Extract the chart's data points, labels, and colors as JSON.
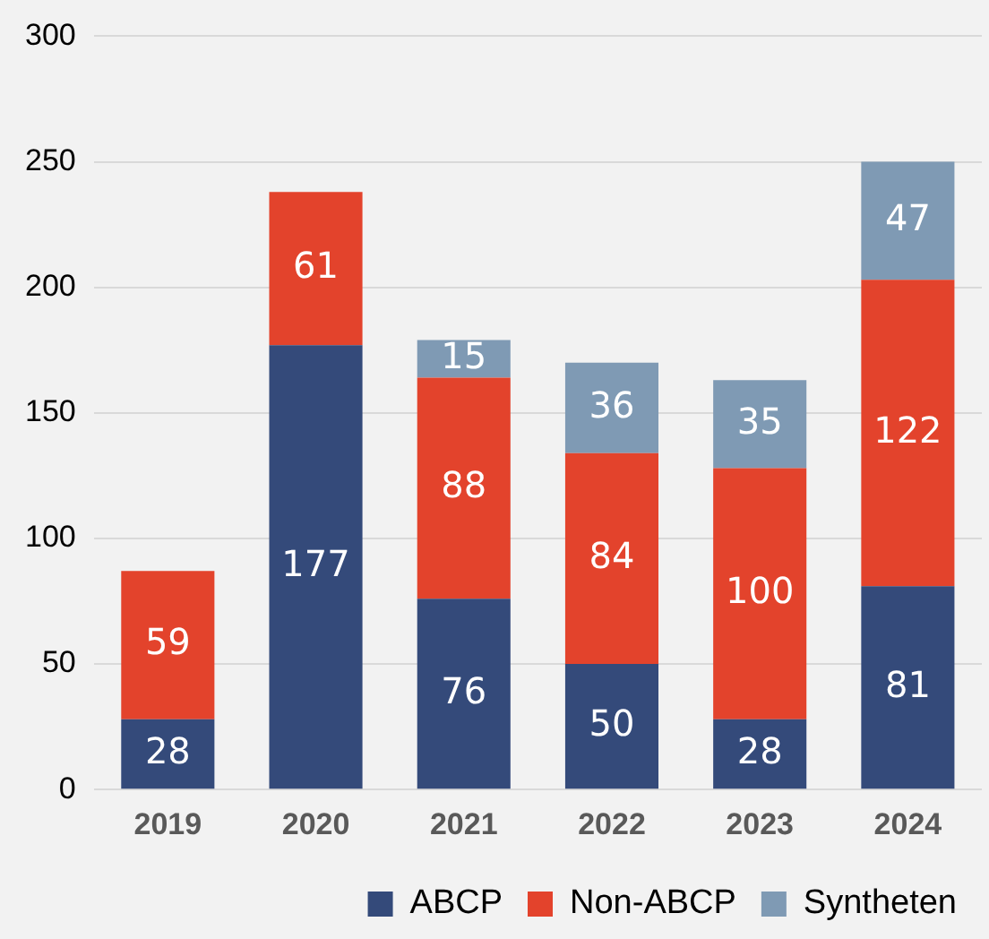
{
  "chart_data": {
    "type": "bar",
    "stacked": true,
    "categories": [
      "2019",
      "2020",
      "2021",
      "2022",
      "2023",
      "2024"
    ],
    "series": [
      {
        "name": "ABCP",
        "color": "#344a7a",
        "values": [
          28,
          177,
          76,
          50,
          28,
          81
        ]
      },
      {
        "name": "Non-ABCP",
        "color": "#e3432c",
        "values": [
          59,
          61,
          88,
          84,
          100,
          122
        ]
      },
      {
        "name": "Syntheten",
        "color": "#7f9ab4",
        "values": [
          null,
          null,
          15,
          36,
          35,
          47
        ]
      }
    ],
    "ylim": [
      0,
      300
    ],
    "yticks": [
      0,
      50,
      100,
      150,
      200,
      250,
      300
    ],
    "grid": "y",
    "legend": "bottom right",
    "data_labels": true
  }
}
